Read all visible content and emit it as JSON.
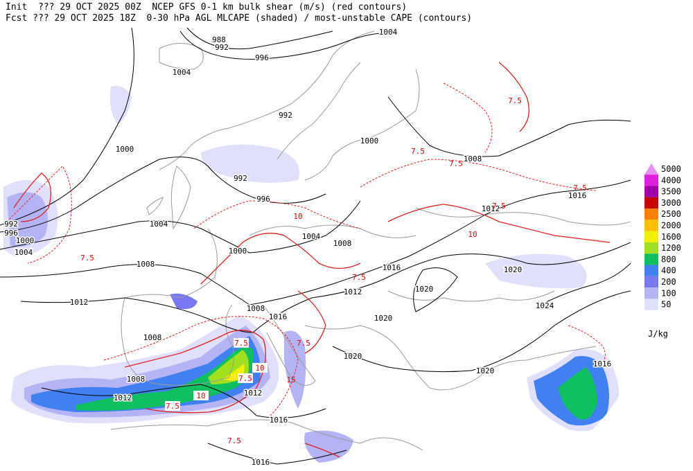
{
  "header": {
    "line1": "Init  ??? 29 OCT 2025 00Z  NCEP GFS 0-1 km bulk shear (m/s) (red contours)",
    "line2": "Fcst ??? 29 OCT 2025 18Z  0-30 hPa AGL MLCAPE (shaded) / most-unstable CAPE (contours)"
  },
  "legend": {
    "levels": [
      5000,
      4000,
      3500,
      3000,
      2500,
      2000,
      1600,
      1200,
      800,
      400,
      200,
      100,
      50
    ],
    "colors": [
      "#e890f0",
      "#e020e0",
      "#a000a8",
      "#c80000",
      "#ff8000",
      "#ffc000",
      "#f0f000",
      "#a0e020",
      "#10c060",
      "#4080f0",
      "#7878f0",
      "#b4b4f4",
      "#e0e0fa"
    ],
    "unit": "J/kg"
  },
  "isobar_labels": [
    "988",
    "992",
    "996",
    "1004",
    "1004",
    "992",
    "1000",
    "1000",
    "1008",
    "992",
    "996",
    "1016",
    "1012",
    "992",
    "996",
    "1000",
    "1004",
    "1004",
    "1004",
    "1008",
    "1000",
    "1016",
    "1020",
    "1008",
    "1020",
    "1012",
    "1012",
    "1024",
    "1008",
    "1016",
    "1020",
    "1008",
    "1020",
    "1016",
    "1008",
    "1020",
    "1012",
    "1012",
    "1016",
    "1016"
  ],
  "shear_boxed_labels": [
    "7.5",
    "10",
    "7.5",
    "10",
    "7.5"
  ],
  "shear_labels": [
    "7.5",
    "7.5",
    "7.5",
    "7.5",
    "7.5",
    "10",
    "7.5",
    "7.5",
    "7.5",
    "7.5",
    "10",
    "15"
  ]
}
